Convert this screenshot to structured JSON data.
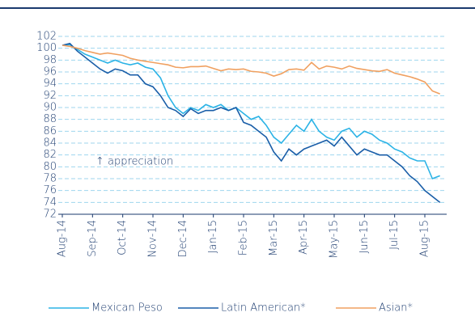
{
  "chart_data": {
    "type": "line",
    "annotation": "↑ appreciation",
    "categories": [
      "Aug-14",
      null,
      null,
      null,
      "Sep-14",
      null,
      null,
      null,
      "Oct-14",
      null,
      null,
      null,
      "Nov-14",
      null,
      null,
      null,
      "Dec-14",
      null,
      null,
      null,
      "Jan-15",
      null,
      null,
      null,
      "Feb-15",
      null,
      null,
      null,
      "Mar-15",
      null,
      null,
      null,
      "Apr-15",
      null,
      null,
      null,
      "May-15",
      null,
      null,
      null,
      "Jun-15",
      null,
      null,
      null,
      "Jul-15",
      null,
      null,
      null,
      "Aug-15",
      null,
      null
    ],
    "series": [
      {
        "name": "Mexican Peso",
        "color": "#2bb3e6",
        "values": [
          100.5,
          100.6,
          99.8,
          99,
          98.5,
          98,
          97.5,
          98,
          97.5,
          97.2,
          97.5,
          96.8,
          96.5,
          95,
          92,
          90,
          89,
          90,
          89.5,
          90.5,
          90,
          90.5,
          89.5,
          90,
          89,
          88,
          88.5,
          87,
          85,
          84,
          85.5,
          87,
          86,
          88,
          86,
          85,
          84.5,
          86,
          86.5,
          85,
          86,
          85.5,
          84.5,
          84,
          83,
          82.5,
          81.5,
          81,
          81,
          78,
          78.5
        ]
      },
      {
        "name": "Latin American*",
        "color": "#1a5ea8",
        "values": [
          100.5,
          100.8,
          99.5,
          98.5,
          97.5,
          96.5,
          95.8,
          96.5,
          96.2,
          95.5,
          95.5,
          94,
          93.5,
          92,
          90,
          89.5,
          88.5,
          89.8,
          89,
          89.5,
          89.5,
          90,
          89.5,
          90,
          87.5,
          87,
          86,
          85,
          82.5,
          81,
          83,
          82,
          83,
          83.5,
          84,
          84.5,
          83.5,
          85,
          83.5,
          82,
          83,
          82.5,
          82,
          82,
          81,
          80,
          78.5,
          77.5,
          76,
          75,
          74
        ]
      },
      {
        "name": "Asian*",
        "color": "#f0a060",
        "values": [
          100.5,
          100.3,
          100,
          99.6,
          99.3,
          99,
          99.2,
          99,
          98.8,
          98.3,
          98,
          97.8,
          97.6,
          97.4,
          97.2,
          96.8,
          96.7,
          96.9,
          96.9,
          97,
          96.6,
          96.2,
          96.5,
          96.4,
          96.5,
          96.1,
          96,
          95.8,
          95.3,
          95.7,
          96.4,
          96.5,
          96.3,
          97.6,
          96.5,
          97,
          96.8,
          96.5,
          97,
          96.6,
          96.4,
          96.2,
          96.1,
          96.4,
          95.8,
          95.5,
          95.2,
          94.8,
          94.3,
          92.8,
          92.3
        ]
      }
    ],
    "ylim": [
      72,
      102
    ],
    "yticks": [
      72,
      74,
      76,
      78,
      80,
      82,
      84,
      86,
      88,
      90,
      92,
      94,
      96,
      98,
      100,
      102
    ],
    "grid": true,
    "legend": "bottom"
  }
}
